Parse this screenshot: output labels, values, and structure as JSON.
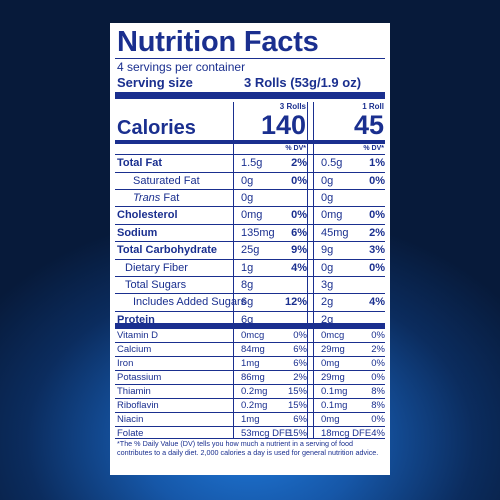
{
  "title": "Nutrition Facts",
  "servings_per_container": "4 servings per container",
  "serving_size_label": "Serving size",
  "serving_size_value": "3 Rolls (53g/1.9 oz)",
  "col1_header": "3 Rolls",
  "col2_header": "1 Roll",
  "calories_label": "Calories",
  "calories_col1": "140",
  "calories_col2": "45",
  "dv_header": "% DV*",
  "nutrients": [
    {
      "label": "Total Fat",
      "a1": "1.5g",
      "d1": "2%",
      "a2": "0.5g",
      "d2": "1%"
    },
    {
      "label": "Saturated Fat",
      "a1": "0g",
      "d1": "0%",
      "a2": "0g",
      "d2": "0%"
    },
    {
      "label_italic": "Trans",
      "label_rest": " Fat",
      "a1": "0g",
      "d1": "",
      "a2": "0g",
      "d2": ""
    },
    {
      "label": "Cholesterol",
      "a1": "0mg",
      "d1": "0%",
      "a2": "0mg",
      "d2": "0%"
    },
    {
      "label": "Sodium",
      "a1": "135mg",
      "d1": "6%",
      "a2": "45mg",
      "d2": "2%"
    },
    {
      "label": "Total Carbohydrate",
      "a1": "25g",
      "d1": "9%",
      "a2": "9g",
      "d2": "3%"
    },
    {
      "label": "Dietary Fiber",
      "a1": "1g",
      "d1": "4%",
      "a2": "0g",
      "d2": "0%"
    },
    {
      "label": "Total Sugars",
      "a1": "8g",
      "d1": "",
      "a2": "3g",
      "d2": ""
    },
    {
      "label": "Includes Added Sugars",
      "a1": "6g",
      "d1": "12%",
      "a2": "2g",
      "d2": "4%"
    },
    {
      "label": "Protein",
      "a1": "6g",
      "d1": "",
      "a2": "2g",
      "d2": ""
    }
  ],
  "micros": [
    {
      "label": "Vitamin D",
      "a1": "0mcg",
      "d1": "0%",
      "a2": "0mcg",
      "d2": "0%"
    },
    {
      "label": "Calcium",
      "a1": "84mg",
      "d1": "6%",
      "a2": "29mg",
      "d2": "2%"
    },
    {
      "label": "Iron",
      "a1": "1mg",
      "d1": "6%",
      "a2": "0mg",
      "d2": "0%"
    },
    {
      "label": "Potassium",
      "a1": "86mg",
      "d1": "2%",
      "a2": "29mg",
      "d2": "0%"
    },
    {
      "label": "Thiamin",
      "a1": "0.2mg",
      "d1": "15%",
      "a2": "0.1mg",
      "d2": "8%"
    },
    {
      "label": "Riboflavin",
      "a1": "0.2mg",
      "d1": "15%",
      "a2": "0.1mg",
      "d2": "8%"
    },
    {
      "label": "Niacin",
      "a1": "1mg",
      "d1": "6%",
      "a2": "0mg",
      "d2": "0%"
    },
    {
      "label": "Folate",
      "a1": "53mcg DFE",
      "d1": "15%",
      "a2": "18mcg DFE",
      "d2": "4%"
    }
  ],
  "footnote": "*The % Daily Value (DV) tells you how much a nutrient in a serving of food contributes to a daily diet. 2,000 calories a day is used for general nutrition advice.",
  "colors": {
    "ink": "#1a2f8f",
    "panel": "#ffffff",
    "background": "#0b2c5e"
  }
}
